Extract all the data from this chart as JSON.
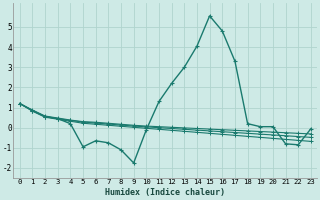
{
  "xlabel": "Humidex (Indice chaleur)",
  "background_color": "#ceeae6",
  "grid_color": "#b0d4ce",
  "line_color": "#1a7a6e",
  "x_values": [
    0,
    1,
    2,
    3,
    4,
    5,
    6,
    7,
    8,
    9,
    10,
    11,
    12,
    13,
    14,
    15,
    16,
    17,
    18,
    19,
    20,
    21,
    22,
    23
  ],
  "series1": [
    1.2,
    0.85,
    0.55,
    0.45,
    0.2,
    -0.95,
    -0.65,
    -0.75,
    -1.1,
    -1.75,
    -0.1,
    1.3,
    2.2,
    3.0,
    4.05,
    5.55,
    4.8,
    3.3,
    0.2,
    0.05,
    0.05,
    -0.8,
    -0.85,
    -0.05
  ],
  "series2": [
    1.2,
    0.82,
    0.52,
    0.42,
    0.32,
    0.22,
    0.17,
    0.12,
    0.07,
    0.02,
    -0.03,
    -0.08,
    -0.13,
    -0.18,
    -0.23,
    -0.28,
    -0.33,
    -0.38,
    -0.43,
    -0.48,
    -0.53,
    -0.58,
    -0.63,
    -0.68
  ],
  "series3": [
    1.2,
    0.85,
    0.55,
    0.45,
    0.36,
    0.28,
    0.23,
    0.18,
    0.13,
    0.08,
    0.04,
    0.0,
    -0.04,
    -0.08,
    -0.12,
    -0.16,
    -0.2,
    -0.24,
    -0.28,
    -0.32,
    -0.36,
    -0.4,
    -0.44,
    -0.48
  ],
  "series4": [
    1.2,
    0.88,
    0.58,
    0.48,
    0.38,
    0.3,
    0.27,
    0.22,
    0.17,
    0.12,
    0.08,
    0.05,
    0.02,
    -0.01,
    -0.04,
    -0.07,
    -0.1,
    -0.13,
    -0.16,
    -0.19,
    -0.22,
    -0.25,
    -0.28,
    -0.31
  ],
  "ylim": [
    -2.5,
    6.2
  ],
  "xlim": [
    -0.5,
    23.5
  ],
  "yticks": [
    -2,
    -1,
    0,
    1,
    2,
    3,
    4,
    5
  ],
  "xticks": [
    0,
    1,
    2,
    3,
    4,
    5,
    6,
    7,
    8,
    9,
    10,
    11,
    12,
    13,
    14,
    15,
    16,
    17,
    18,
    19,
    20,
    21,
    22,
    23
  ]
}
